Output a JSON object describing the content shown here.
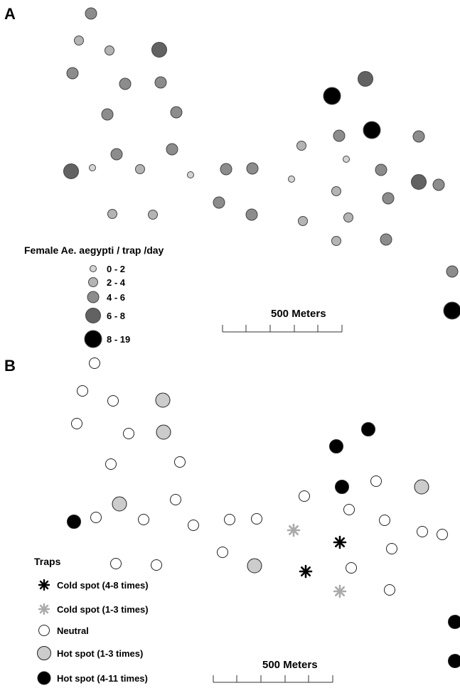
{
  "panels": {
    "a": {
      "letter": "A",
      "legend_title": "Female Ae. aegypti / trap /day",
      "scale_label": "500 Meters",
      "classes": [
        {
          "label": "0 - 2",
          "fill": "#d4d4d4"
        },
        {
          "label": "2 - 4",
          "fill": "#b4b4b4"
        },
        {
          "label": "4 - 6",
          "fill": "#8c8c8c"
        },
        {
          "label": "6 - 8",
          "fill": "#626262"
        },
        {
          "label": "8 - 19",
          "fill": "#000000"
        }
      ]
    },
    "b": {
      "letter": "B",
      "legend_title": "Traps",
      "scale_label": "500 Meters",
      "categories": [
        {
          "label": "Cold spot (4-8 times)",
          "symbol": "asterisk-black"
        },
        {
          "label": "Cold spot (1-3 times)",
          "symbol": "asterisk-gray"
        },
        {
          "label": "Neutral",
          "symbol": "circle-white"
        },
        {
          "label": "Hot spot (1-3 times)",
          "symbol": "circle-gray"
        },
        {
          "label": "Hot spot (4-11 times)",
          "symbol": "circle-black"
        }
      ]
    }
  }
}
